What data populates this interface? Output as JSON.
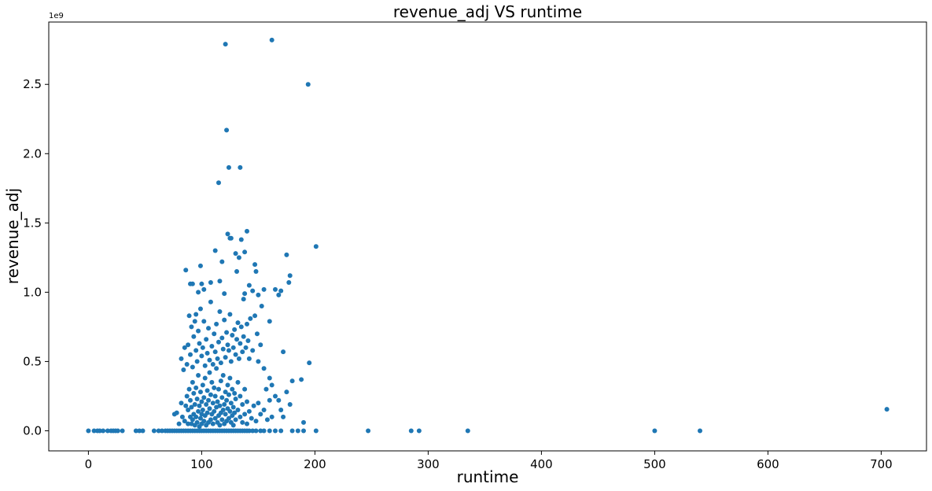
{
  "chart_data": {
    "type": "scatter",
    "title": "revenue_adj VS runtime",
    "xlabel": "runtime",
    "ylabel": "revenue_adj",
    "y_offset_label": "1e9",
    "xlim": [
      -35,
      740
    ],
    "ylim": [
      -0.145,
      2.95
    ],
    "y_scale": 1000000000,
    "x_ticks": [
      0,
      100,
      200,
      300,
      400,
      500,
      600,
      700
    ],
    "x_tick_labels": [
      "0",
      "100",
      "200",
      "300",
      "400",
      "500",
      "600",
      "700"
    ],
    "y_ticks": [
      0.0,
      0.5,
      1.0,
      1.5,
      2.0,
      2.5
    ],
    "y_tick_labels": [
      "0.0",
      "0.5",
      "1.0",
      "1.5",
      "2.0",
      "2.5"
    ],
    "marker_color": "#1f77b4",
    "grid": false,
    "legend": "none",
    "series": [
      {
        "name": "revenue_adj",
        "points": [
          [
            0,
            0
          ],
          [
            5,
            0
          ],
          [
            8,
            0
          ],
          [
            10,
            0
          ],
          [
            13,
            0
          ],
          [
            17,
            0
          ],
          [
            20,
            0
          ],
          [
            22,
            0
          ],
          [
            24,
            0
          ],
          [
            26,
            0
          ],
          [
            30,
            0
          ],
          [
            42,
            0
          ],
          [
            45,
            0
          ],
          [
            48,
            0
          ],
          [
            58,
            0
          ],
          [
            62,
            0
          ],
          [
            65,
            0
          ],
          [
            68,
            0
          ],
          [
            70,
            0
          ],
          [
            72,
            0
          ],
          [
            74,
            0
          ],
          [
            76,
            0
          ],
          [
            78,
            0
          ],
          [
            80,
            0
          ],
          [
            82,
            0
          ],
          [
            84,
            0
          ],
          [
            86,
            0
          ],
          [
            88,
            0
          ],
          [
            90,
            0
          ],
          [
            92,
            0
          ],
          [
            94,
            0
          ],
          [
            96,
            0
          ],
          [
            98,
            0
          ],
          [
            100,
            0
          ],
          [
            102,
            0
          ],
          [
            104,
            0
          ],
          [
            106,
            0
          ],
          [
            108,
            0
          ],
          [
            110,
            0
          ],
          [
            112,
            0
          ],
          [
            114,
            0
          ],
          [
            116,
            0
          ],
          [
            118,
            0
          ],
          [
            120,
            0
          ],
          [
            122,
            0
          ],
          [
            124,
            0
          ],
          [
            126,
            0
          ],
          [
            128,
            0
          ],
          [
            130,
            0
          ],
          [
            132,
            0
          ],
          [
            134,
            0
          ],
          [
            136,
            0
          ],
          [
            138,
            0
          ],
          [
            140,
            0
          ],
          [
            142,
            0
          ],
          [
            145,
            0
          ],
          [
            148,
            0
          ],
          [
            152,
            0
          ],
          [
            155,
            0
          ],
          [
            160,
            0
          ],
          [
            165,
            0
          ],
          [
            170,
            0
          ],
          [
            180,
            0
          ],
          [
            185,
            0
          ],
          [
            190,
            0
          ],
          [
            201,
            0
          ],
          [
            247,
            0
          ],
          [
            285,
            0
          ],
          [
            292,
            0
          ],
          [
            335,
            0
          ],
          [
            500,
            0
          ],
          [
            540,
            0
          ],
          [
            705,
            0.155
          ],
          [
            76,
            0.12
          ],
          [
            78,
            0.13
          ],
          [
            80,
            0.05
          ],
          [
            82,
            0.2
          ],
          [
            83,
            0.1
          ],
          [
            85,
            0.07
          ],
          [
            86,
            0.18
          ],
          [
            87,
            0.25
          ],
          [
            88,
            0.05
          ],
          [
            88,
            0.15
          ],
          [
            89,
            0.3
          ],
          [
            90,
            0.1
          ],
          [
            90,
            0.22
          ],
          [
            91,
            0.05
          ],
          [
            91,
            0.17
          ],
          [
            92,
            0.35
          ],
          [
            92,
            0.08
          ],
          [
            93,
            0.12
          ],
          [
            93,
            0.27
          ],
          [
            94,
            0.04
          ],
          [
            94,
            0.19
          ],
          [
            95,
            0.1
          ],
          [
            95,
            0.31
          ],
          [
            96,
            0.06
          ],
          [
            96,
            0.23
          ],
          [
            97,
            0.14
          ],
          [
            97,
            0.4
          ],
          [
            98,
            0.03
          ],
          [
            98,
            0.18
          ],
          [
            99,
            0.09
          ],
          [
            99,
            0.28
          ],
          [
            100,
            0.12
          ],
          [
            100,
            0.05
          ],
          [
            100,
            0.21
          ],
          [
            101,
            0.15
          ],
          [
            101,
            0.33
          ],
          [
            102,
            0.07
          ],
          [
            102,
            0.24
          ],
          [
            103,
            0.11
          ],
          [
            103,
            0.38
          ],
          [
            104,
            0.04
          ],
          [
            104,
            0.19
          ],
          [
            105,
            0.13
          ],
          [
            105,
            0.29
          ],
          [
            106,
            0.06
          ],
          [
            106,
            0.22
          ],
          [
            107,
            0.16
          ],
          [
            107,
            0.42
          ],
          [
            108,
            0.08
          ],
          [
            108,
            0.26
          ],
          [
            109,
            0.12
          ],
          [
            109,
            0.35
          ],
          [
            110,
            0.05
          ],
          [
            110,
            0.2
          ],
          [
            111,
            0.14
          ],
          [
            111,
            0.31
          ],
          [
            112,
            0.09
          ],
          [
            112,
            0.25
          ],
          [
            113,
            0.17
          ],
          [
            113,
            0.45
          ],
          [
            114,
            0.06
          ],
          [
            114,
            0.21
          ],
          [
            115,
            0.11
          ],
          [
            115,
            0.3
          ],
          [
            116,
            0.04
          ],
          [
            116,
            0.18
          ],
          [
            117,
            0.13
          ],
          [
            117,
            0.36
          ],
          [
            118,
            0.08
          ],
          [
            118,
            0.24
          ],
          [
            119,
            0.15
          ],
          [
            119,
            0.4
          ],
          [
            120,
            0.05
          ],
          [
            120,
            0.19
          ],
          [
            121,
            0.12
          ],
          [
            121,
            0.28
          ],
          [
            122,
            0.07
          ],
          [
            122,
            0.22
          ],
          [
            123,
            0.16
          ],
          [
            123,
            0.33
          ],
          [
            124,
            0.09
          ],
          [
            124,
            0.26
          ],
          [
            125,
            0.14
          ],
          [
            125,
            0.38
          ],
          [
            126,
            0.06
          ],
          [
            126,
            0.2
          ],
          [
            127,
            0.11
          ],
          [
            127,
            0.3
          ],
          [
            128,
            0.04
          ],
          [
            128,
            0.17
          ],
          [
            129,
            0.13
          ],
          [
            129,
            0.27
          ],
          [
            130,
            0.08
          ],
          [
            130,
            0.23
          ],
          [
            132,
            0.15
          ],
          [
            132,
            0.35
          ],
          [
            134,
            0.1
          ],
          [
            134,
            0.25
          ],
          [
            136,
            0.06
          ],
          [
            136,
            0.19
          ],
          [
            138,
            0.12
          ],
          [
            138,
            0.3
          ],
          [
            140,
            0.05
          ],
          [
            140,
            0.21
          ],
          [
            142,
            0.14
          ],
          [
            144,
            0.09
          ],
          [
            146,
            0.18
          ],
          [
            148,
            0.07
          ],
          [
            150,
            0.2
          ],
          [
            152,
            0.12
          ],
          [
            155,
            0.15
          ],
          [
            158,
            0.08
          ],
          [
            160,
            0.22
          ],
          [
            162,
            0.1
          ],
          [
            82,
            0.52
          ],
          [
            84,
            0.44
          ],
          [
            85,
            0.6
          ],
          [
            87,
            0.48
          ],
          [
            88,
            0.62
          ],
          [
            89,
            0.83
          ],
          [
            90,
            0.55
          ],
          [
            91,
            0.75
          ],
          [
            92,
            0.46
          ],
          [
            93,
            0.68
          ],
          [
            94,
            0.79
          ],
          [
            95,
            0.58
          ],
          [
            95,
            0.84
          ],
          [
            96,
            0.5
          ],
          [
            97,
            0.72
          ],
          [
            98,
            0.63
          ],
          [
            99,
            0.88
          ],
          [
            100,
            0.54
          ],
          [
            101,
            0.6
          ],
          [
            102,
            0.79
          ],
          [
            103,
            0.47
          ],
          [
            104,
            0.66
          ],
          [
            105,
            0.56
          ],
          [
            106,
            0.74
          ],
          [
            107,
            0.51
          ],
          [
            108,
            0.93
          ],
          [
            109,
            0.61
          ],
          [
            110,
            0.48
          ],
          [
            111,
            0.7
          ],
          [
            112,
            0.57
          ],
          [
            113,
            0.77
          ],
          [
            114,
            0.52
          ],
          [
            115,
            0.64
          ],
          [
            116,
            0.86
          ],
          [
            117,
            0.49
          ],
          [
            118,
            0.67
          ],
          [
            119,
            0.59
          ],
          [
            120,
            0.8
          ],
          [
            121,
            0.53
          ],
          [
            122,
            0.71
          ],
          [
            123,
            0.62
          ],
          [
            124,
            0.58
          ],
          [
            125,
            0.84
          ],
          [
            126,
            0.5
          ],
          [
            127,
            0.69
          ],
          [
            128,
            0.6
          ],
          [
            129,
            0.73
          ],
          [
            130,
            0.55
          ],
          [
            131,
            0.66
          ],
          [
            132,
            0.78
          ],
          [
            133,
            0.52
          ],
          [
            134,
            0.63
          ],
          [
            135,
            0.75
          ],
          [
            136,
            0.57
          ],
          [
            137,
            0.68
          ],
          [
            138,
            0.99
          ],
          [
            139,
            0.6
          ],
          [
            140,
            0.77
          ],
          [
            141,
            0.65
          ],
          [
            142,
            0.52
          ],
          [
            143,
            0.81
          ],
          [
            145,
            0.58
          ],
          [
            147,
            0.83
          ],
          [
            149,
            0.7
          ],
          [
            150,
            0.5
          ],
          [
            152,
            0.62
          ],
          [
            155,
            0.45
          ],
          [
            157,
            0.3
          ],
          [
            160,
            0.38
          ],
          [
            162,
            0.33
          ],
          [
            165,
            0.25
          ],
          [
            168,
            0.22
          ],
          [
            170,
            0.15
          ],
          [
            172,
            0.1
          ],
          [
            175,
            0.28
          ],
          [
            178,
            0.19
          ],
          [
            180,
            0.36
          ],
          [
            188,
            0.37
          ],
          [
            190,
            0.06
          ],
          [
            195,
            0.49
          ],
          [
            86,
            1.16
          ],
          [
            90,
            1.06
          ],
          [
            92,
            1.06
          ],
          [
            97,
            1.0
          ],
          [
            99,
            1.19
          ],
          [
            100,
            1.06
          ],
          [
            102,
            1.02
          ],
          [
            108,
            1.07
          ],
          [
            112,
            1.3
          ],
          [
            115,
            1.79
          ],
          [
            116,
            1.08
          ],
          [
            118,
            1.22
          ],
          [
            120,
            0.99
          ],
          [
            121,
            2.79
          ],
          [
            122,
            2.17
          ],
          [
            123,
            1.42
          ],
          [
            124,
            1.9
          ],
          [
            125,
            1.39
          ],
          [
            126,
            1.39
          ],
          [
            130,
            1.28
          ],
          [
            131,
            1.15
          ],
          [
            133,
            1.25
          ],
          [
            134,
            1.9
          ],
          [
            135,
            1.38
          ],
          [
            137,
            0.95
          ],
          [
            138,
            1.29
          ],
          [
            140,
            1.44
          ],
          [
            142,
            1.05
          ],
          [
            145,
            1.01
          ],
          [
            147,
            1.2
          ],
          [
            148,
            1.15
          ],
          [
            150,
            0.98
          ],
          [
            153,
            0.9
          ],
          [
            155,
            1.02
          ],
          [
            160,
            0.79
          ],
          [
            162,
            2.82
          ],
          [
            165,
            1.02
          ],
          [
            168,
            0.98
          ],
          [
            170,
            1.01
          ],
          [
            172,
            0.57
          ],
          [
            175,
            1.27
          ],
          [
            177,
            1.07
          ],
          [
            178,
            1.12
          ],
          [
            194,
            2.5
          ],
          [
            201,
            1.33
          ]
        ]
      }
    ]
  }
}
